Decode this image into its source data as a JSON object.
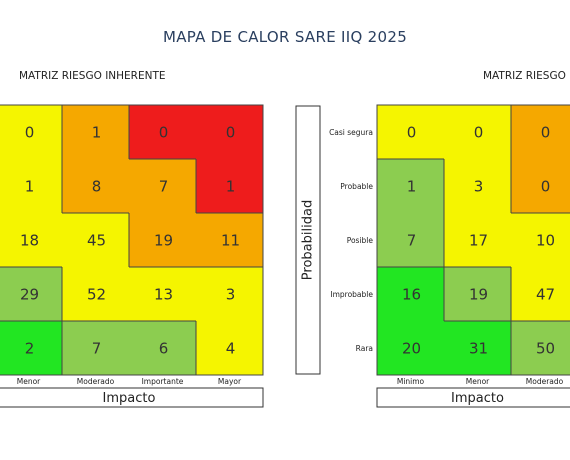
{
  "title": "MAPA DE CALOR SARE IIQ 2025",
  "colors": {
    "red": "#ee1c1c",
    "orange": "#f5a800",
    "yellow": "#f5f500",
    "lightgreen": "#8ccd50",
    "green": "#22e622"
  },
  "probability_box_label": "Probabilidad",
  "chart_data": [
    {
      "type": "heatmap",
      "title": "MATRIZ RIESGO INHERENTE",
      "xlabel": "Impacto",
      "x_categories": [
        "Menor",
        "Moderado",
        "Importante",
        "Mayor"
      ],
      "rows": [
        {
          "values": [
            0,
            1,
            0,
            0
          ],
          "colors": [
            "yellow",
            "orange",
            "red",
            "red"
          ]
        },
        {
          "values": [
            1,
            8,
            7,
            1
          ],
          "colors": [
            "yellow",
            "orange",
            "orange",
            "red"
          ]
        },
        {
          "values": [
            18,
            45,
            19,
            11
          ],
          "colors": [
            "yellow",
            "yellow",
            "orange",
            "orange"
          ]
        },
        {
          "values": [
            29,
            52,
            13,
            3
          ],
          "colors": [
            "lightgreen",
            "yellow",
            "yellow",
            "yellow"
          ]
        },
        {
          "values": [
            2,
            7,
            6,
            4
          ],
          "colors": [
            "green",
            "lightgreen",
            "lightgreen",
            "yellow"
          ]
        }
      ]
    },
    {
      "type": "heatmap",
      "title": "MATRIZ RIESGO",
      "xlabel": "Impacto",
      "x_categories": [
        "Minimo",
        "Menor",
        "Moderado"
      ],
      "y_categories": [
        "Casi segura",
        "Probable",
        "Posible",
        "Improbable",
        "Rara"
      ],
      "rows": [
        {
          "values": [
            0,
            0,
            0
          ],
          "colors": [
            "yellow",
            "yellow",
            "orange"
          ]
        },
        {
          "values": [
            1,
            3,
            0
          ],
          "colors": [
            "lightgreen",
            "yellow",
            "orange"
          ]
        },
        {
          "values": [
            7,
            17,
            10
          ],
          "colors": [
            "lightgreen",
            "yellow",
            "yellow"
          ]
        },
        {
          "values": [
            16,
            19,
            47
          ],
          "colors": [
            "green",
            "lightgreen",
            "yellow"
          ]
        },
        {
          "values": [
            20,
            31,
            50
          ],
          "colors": [
            "green",
            "green",
            "lightgreen"
          ]
        }
      ]
    }
  ]
}
